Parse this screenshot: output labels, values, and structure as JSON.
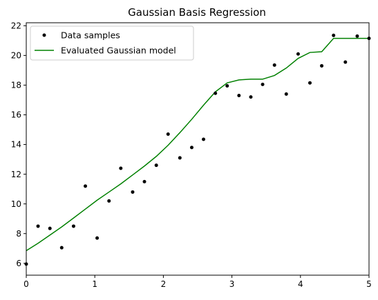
{
  "chart_data": {
    "type": "line",
    "title": "Gaussian Basis Regression",
    "xlabel": "",
    "ylabel": "",
    "xlim": [
      0,
      5
    ],
    "ylim": [
      5.2,
      22.2
    ],
    "xticks": [
      0,
      1,
      2,
      3,
      4,
      5
    ],
    "yticks": [
      6,
      8,
      10,
      12,
      14,
      16,
      18,
      20,
      22
    ],
    "grid": false,
    "legend_position": "top-left",
    "series": [
      {
        "name": "Data samples",
        "kind": "scatter",
        "color": "#000000",
        "x": [
          0.0,
          0.172,
          0.345,
          0.517,
          0.69,
          0.862,
          1.034,
          1.207,
          1.379,
          1.552,
          1.724,
          1.897,
          2.069,
          2.241,
          2.414,
          2.586,
          2.759,
          2.931,
          3.103,
          3.276,
          3.448,
          3.621,
          3.793,
          3.966,
          4.138,
          4.31,
          4.483,
          4.655,
          4.828,
          5.0
        ],
        "y": [
          5.95,
          8.5,
          8.35,
          7.05,
          8.5,
          11.2,
          7.7,
          10.2,
          12.4,
          10.8,
          11.5,
          12.6,
          14.7,
          13.1,
          13.8,
          14.35,
          17.45,
          17.95,
          17.3,
          17.2,
          18.05,
          19.35,
          17.4,
          20.1,
          18.15,
          19.3,
          21.35,
          19.55,
          21.3,
          21.15
        ]
      },
      {
        "name": "Evaluated Gaussian model",
        "kind": "line",
        "color": "#008000",
        "x": [
          0.0,
          0.172,
          0.345,
          0.517,
          0.69,
          0.862,
          1.034,
          1.207,
          1.379,
          1.552,
          1.724,
          1.897,
          2.069,
          2.241,
          2.414,
          2.586,
          2.759,
          2.931,
          3.103,
          3.276,
          3.448,
          3.621,
          3.793,
          3.966,
          4.138,
          4.31,
          4.483,
          4.655,
          4.828,
          5.0
        ],
        "y": [
          6.85,
          7.35,
          7.9,
          8.45,
          9.05,
          9.65,
          10.25,
          10.8,
          11.35,
          11.95,
          12.55,
          13.2,
          13.95,
          14.8,
          15.7,
          16.65,
          17.55,
          18.15,
          18.35,
          18.4,
          18.4,
          18.65,
          19.15,
          19.8,
          20.2,
          20.25,
          21.15,
          21.15,
          21.15,
          21.15
        ]
      }
    ]
  }
}
